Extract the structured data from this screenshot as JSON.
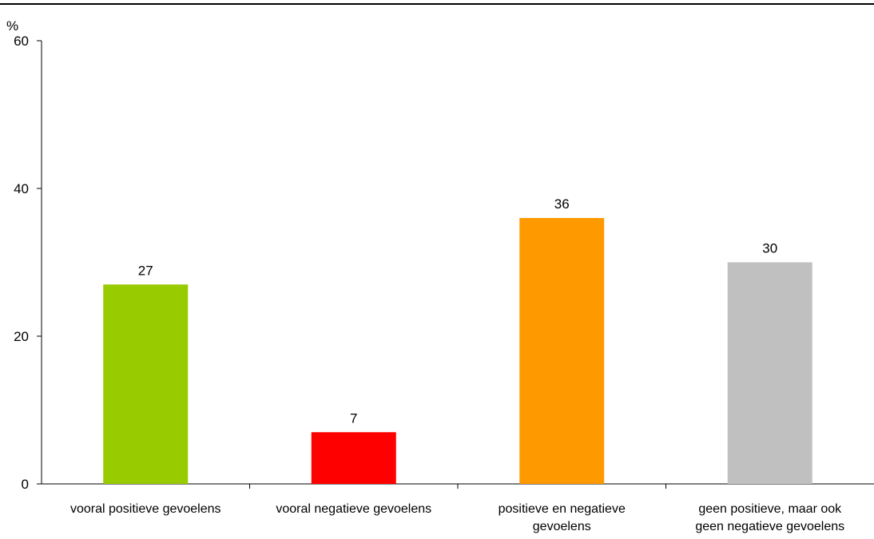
{
  "chart_data": {
    "type": "bar",
    "ylabel": "%",
    "ylim": [
      0,
      60
    ],
    "yticks": [
      0,
      20,
      40,
      60
    ],
    "grid": false,
    "legend": "none",
    "categories": [
      [
        "vooral positieve gevoelens"
      ],
      [
        "vooral negatieve gevoelens"
      ],
      [
        "positieve en negatieve",
        "gevoelens"
      ],
      [
        "geen positieve, maar ook",
        "geen negatieve gevoelens"
      ]
    ],
    "values": [
      27,
      7,
      36,
      30
    ],
    "colors": [
      "#99cc00",
      "#ff0000",
      "#ff9900",
      "#c0c0c0"
    ],
    "data_labels": [
      "27",
      "7",
      "36",
      "30"
    ]
  }
}
